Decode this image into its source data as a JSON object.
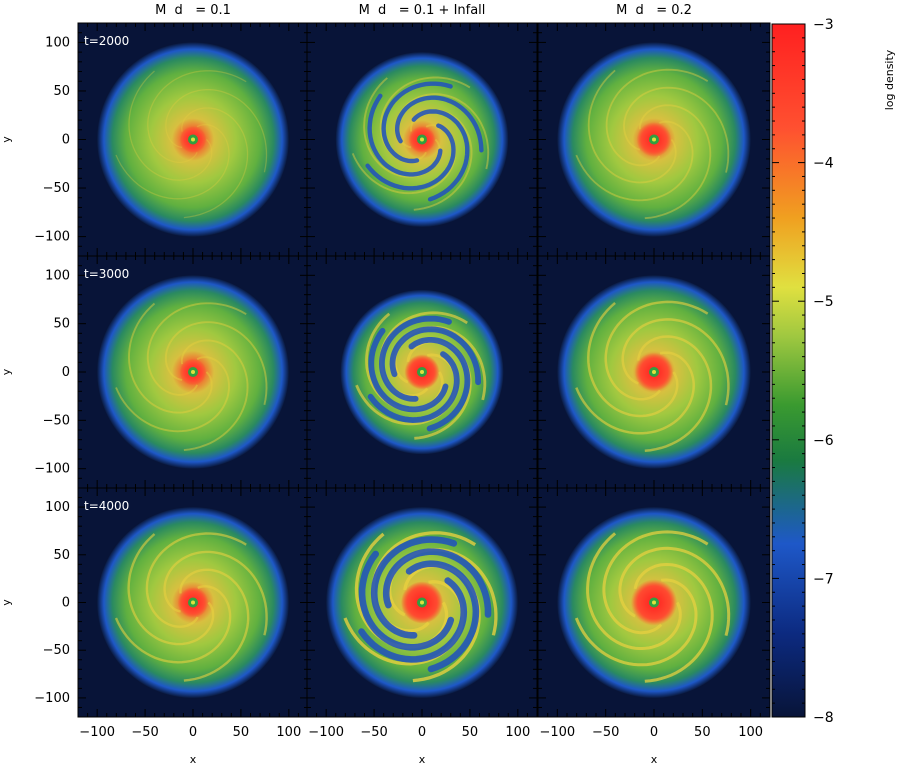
{
  "chart_data": {
    "type": "heatmap",
    "panels_grid": {
      "rows": 3,
      "cols": 3
    },
    "column_titles": [
      "M  d   = 0.1",
      "M  d   = 0.1 + Infall",
      "M  d   = 0.2"
    ],
    "row_labels": [
      "t=2000",
      "t=3000",
      "t=4000"
    ],
    "xlabel": "x",
    "ylabel": "y",
    "xlim": [
      -120,
      120
    ],
    "ylim": [
      -120,
      120
    ],
    "x_ticks": [
      -100,
      -50,
      0,
      50,
      100
    ],
    "y_ticks": [
      -100,
      -50,
      0,
      50,
      100
    ],
    "x_tick_labels": [
      "−100",
      "−50",
      "0",
      "50",
      "100"
    ],
    "y_tick_labels": [
      "−100",
      "−50",
      "0",
      "50",
      "100"
    ],
    "colorbar": {
      "label": "log density",
      "range": [
        -8,
        -3
      ],
      "ticks": [
        -3,
        -4,
        -5,
        -6,
        -7,
        -8
      ],
      "tick_labels": [
        "−3",
        "−4",
        "−5",
        "−6",
        "−7",
        "−8"
      ],
      "colors": [
        "#0a1a40",
        "#1030a0",
        "#2a70d0",
        "#1a8a30",
        "#8ac040",
        "#e0e040",
        "#f0a020",
        "#ff3030"
      ]
    },
    "panels": [
      {
        "row": 0,
        "col": 0,
        "disk_radius": 100,
        "core_radius": 14,
        "spiral_strength": 0.1,
        "gaps": false
      },
      {
        "row": 0,
        "col": 1,
        "disk_radius": 90,
        "core_radius": 14,
        "spiral_strength": 0.35,
        "gaps": true
      },
      {
        "row": 0,
        "col": 2,
        "disk_radius": 100,
        "core_radius": 18,
        "spiral_strength": 0.3,
        "gaps": false
      },
      {
        "row": 1,
        "col": 0,
        "disk_radius": 100,
        "core_radius": 14,
        "spiral_strength": 0.35,
        "gaps": false
      },
      {
        "row": 1,
        "col": 1,
        "disk_radius": 85,
        "core_radius": 18,
        "spiral_strength": 0.7,
        "gaps": true
      },
      {
        "row": 1,
        "col": 2,
        "disk_radius": 100,
        "core_radius": 20,
        "spiral_strength": 0.6,
        "gaps": false
      },
      {
        "row": 2,
        "col": 0,
        "disk_radius": 100,
        "core_radius": 16,
        "spiral_strength": 0.55,
        "gaps": false
      },
      {
        "row": 2,
        "col": 1,
        "disk_radius": 100,
        "core_radius": 22,
        "spiral_strength": 0.9,
        "gaps": true
      },
      {
        "row": 2,
        "col": 2,
        "disk_radius": 100,
        "core_radius": 24,
        "spiral_strength": 0.8,
        "gaps": false
      }
    ]
  }
}
